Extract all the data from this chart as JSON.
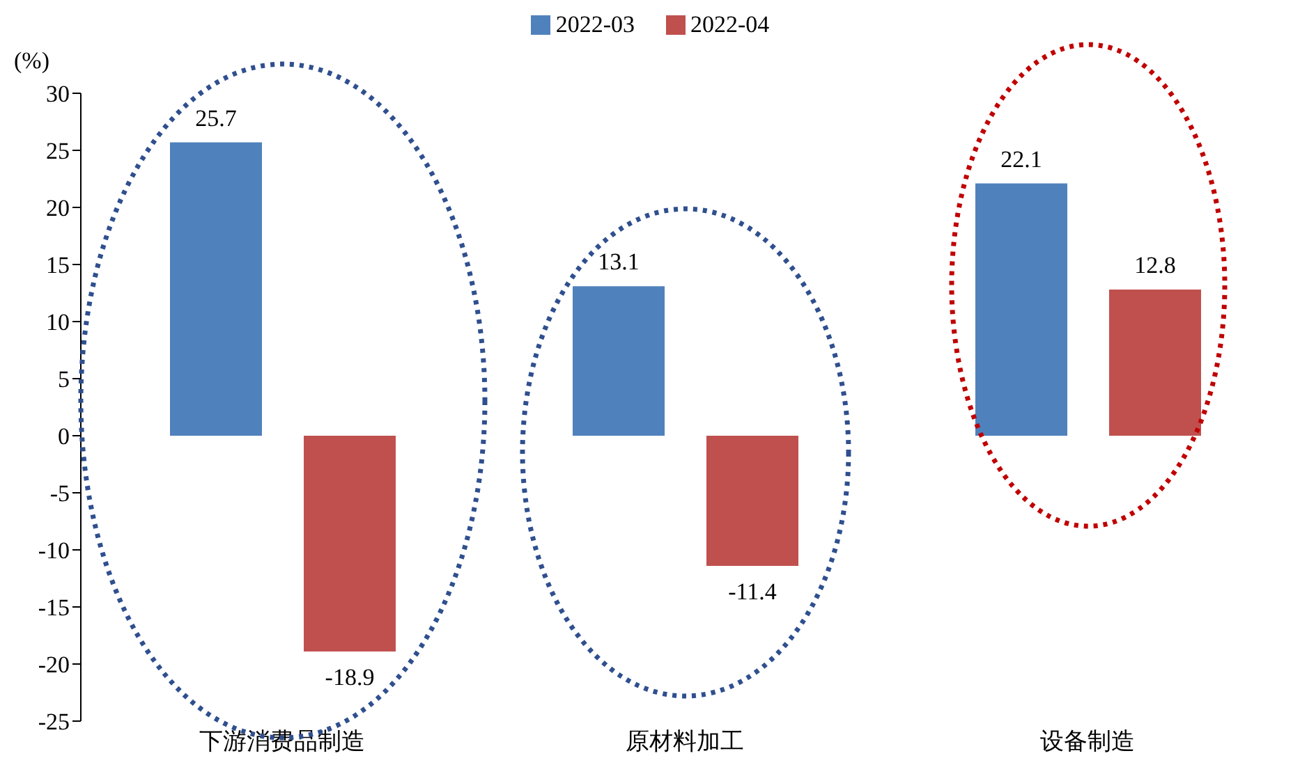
{
  "chart_data": {
    "type": "bar",
    "ylabel": "(%)",
    "categories": [
      "下游消费品制造",
      "原材料加工",
      "设备制造"
    ],
    "series": [
      {
        "name": "2022-03",
        "color": "#4f81bd",
        "values": [
          25.7,
          13.1,
          22.1
        ]
      },
      {
        "name": "2022-04",
        "color": "#c0504d",
        "values": [
          -18.9,
          -11.4,
          12.8
        ]
      }
    ],
    "ylim": [
      -25,
      30
    ],
    "yticks": [
      -25,
      -20,
      -15,
      -10,
      -5,
      0,
      5,
      10,
      15,
      20,
      25,
      30
    ],
    "legend": "top",
    "data_labels": true
  }
}
